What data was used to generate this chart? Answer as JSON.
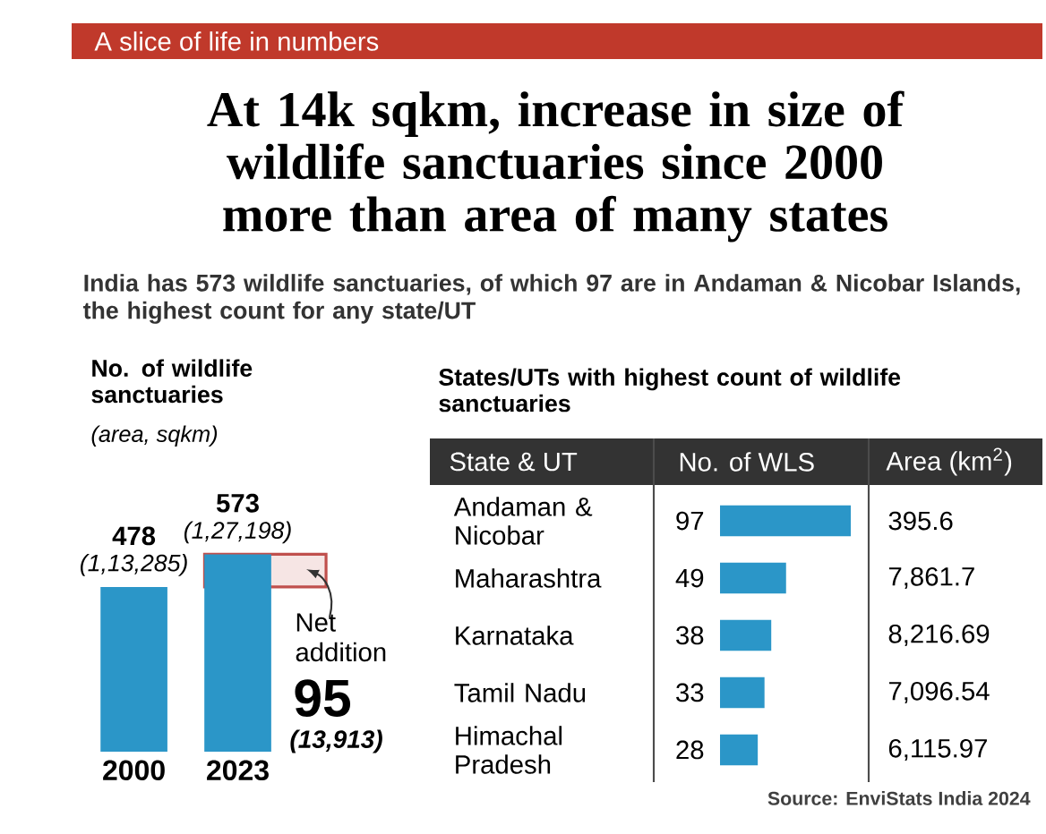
{
  "chart_data": [
    {
      "type": "bar",
      "title": "At 14k sqkm, increase in size of wildlife sanctuaries since 2000 more than area of many states",
      "subtitle": "India has 573 wildlife sanctuaries, of which 97 are in Andaman & Nicobar Islands, the highest count for any state/UT",
      "categories": [
        "2000",
        "2023"
      ],
      "values": [
        478,
        573
      ],
      "color": "#2b96c8",
      "value_labels": [
        "478",
        "573"
      ],
      "bands": [
        {
          "axis": "y",
          "from": 478,
          "to": 573,
          "color": "#c0504d"
        }
      ],
      "annotations": [
        "A slice of life in numbers",
        "No. of wildlife sanctuaries",
        "(area, sqkm)",
        "(1,13,285)",
        "(1,27,198)",
        "Net addition",
        "95",
        "(13,913)"
      ]
    },
    {
      "type": "bar",
      "orientation": "horizontal",
      "title": "States/UTs with highest count of wildlife sanctuaries",
      "xlabel": "No. of WLS",
      "ylabel": "State & UT",
      "categories": [
        "Andaman & Nicobar",
        "Maharashtra",
        "Karnataka",
        "Tamil Nadu",
        "Himachal Pradesh"
      ],
      "values": [
        97,
        49,
        38,
        33,
        28
      ],
      "color": "#2b96c8",
      "data_labels": true,
      "annotations": [
        "Area (km$^{2}$)",
        "395.6",
        "7,861.7",
        "8,216.69",
        "7,096.54",
        "6,115.97",
        "Source: EnviStats India 2024"
      ]
    }
  ]
}
